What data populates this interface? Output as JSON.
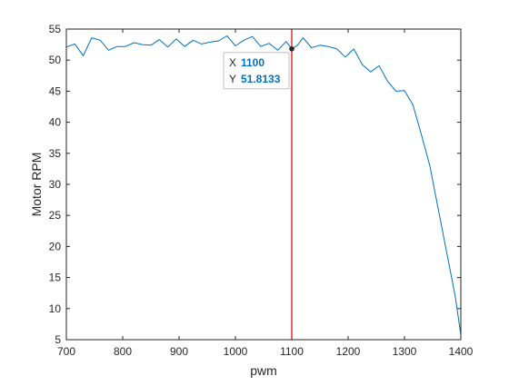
{
  "chart_data": {
    "type": "line",
    "title": "",
    "xlabel": "pwm",
    "ylabel": "Motor RPM",
    "xlim": [
      700,
      1400
    ],
    "ylim": [
      5,
      55
    ],
    "xticks": [
      700,
      800,
      900,
      1000,
      1100,
      1200,
      1300,
      1400
    ],
    "yticks": [
      5,
      10,
      15,
      20,
      25,
      30,
      35,
      40,
      45,
      50,
      55
    ],
    "grid": false,
    "series": [
      {
        "color": "#0072BD",
        "x": [
          700,
          715,
          730,
          745,
          760,
          775,
          790,
          805,
          820,
          835,
          850,
          865,
          880,
          895,
          910,
          925,
          940,
          955,
          970,
          985,
          1000,
          1015,
          1030,
          1045,
          1060,
          1075,
          1090,
          1100,
          1110,
          1120,
          1135,
          1150,
          1165,
          1180,
          1195,
          1210,
          1225,
          1240,
          1255,
          1270,
          1285,
          1300,
          1315,
          1330,
          1345,
          1360,
          1375,
          1390,
          1400
        ],
        "y": [
          52.1,
          52.6,
          50.7,
          53.6,
          53.2,
          51.6,
          52.2,
          52.2,
          52.8,
          52.5,
          52.4,
          53.3,
          52.1,
          53.4,
          52.2,
          53.2,
          52.6,
          52.9,
          53.1,
          53.9,
          52.3,
          53.2,
          53.8,
          52.2,
          52.7,
          51.6,
          53.0,
          51.8133,
          52.4,
          53.6,
          52.0,
          52.4,
          52.2,
          51.8,
          50.5,
          51.8,
          49.3,
          48.1,
          49.1,
          46.6,
          45.0,
          45.1,
          42.8,
          38.0,
          33.0,
          26.0,
          19.0,
          12.0,
          5.8
        ]
      }
    ],
    "cursor": {
      "x": 1100,
      "color": "#E03030"
    },
    "datatip": {
      "x_key": "X",
      "x_value": "1100",
      "y_key": "Y",
      "y_value": "51.8133"
    }
  }
}
